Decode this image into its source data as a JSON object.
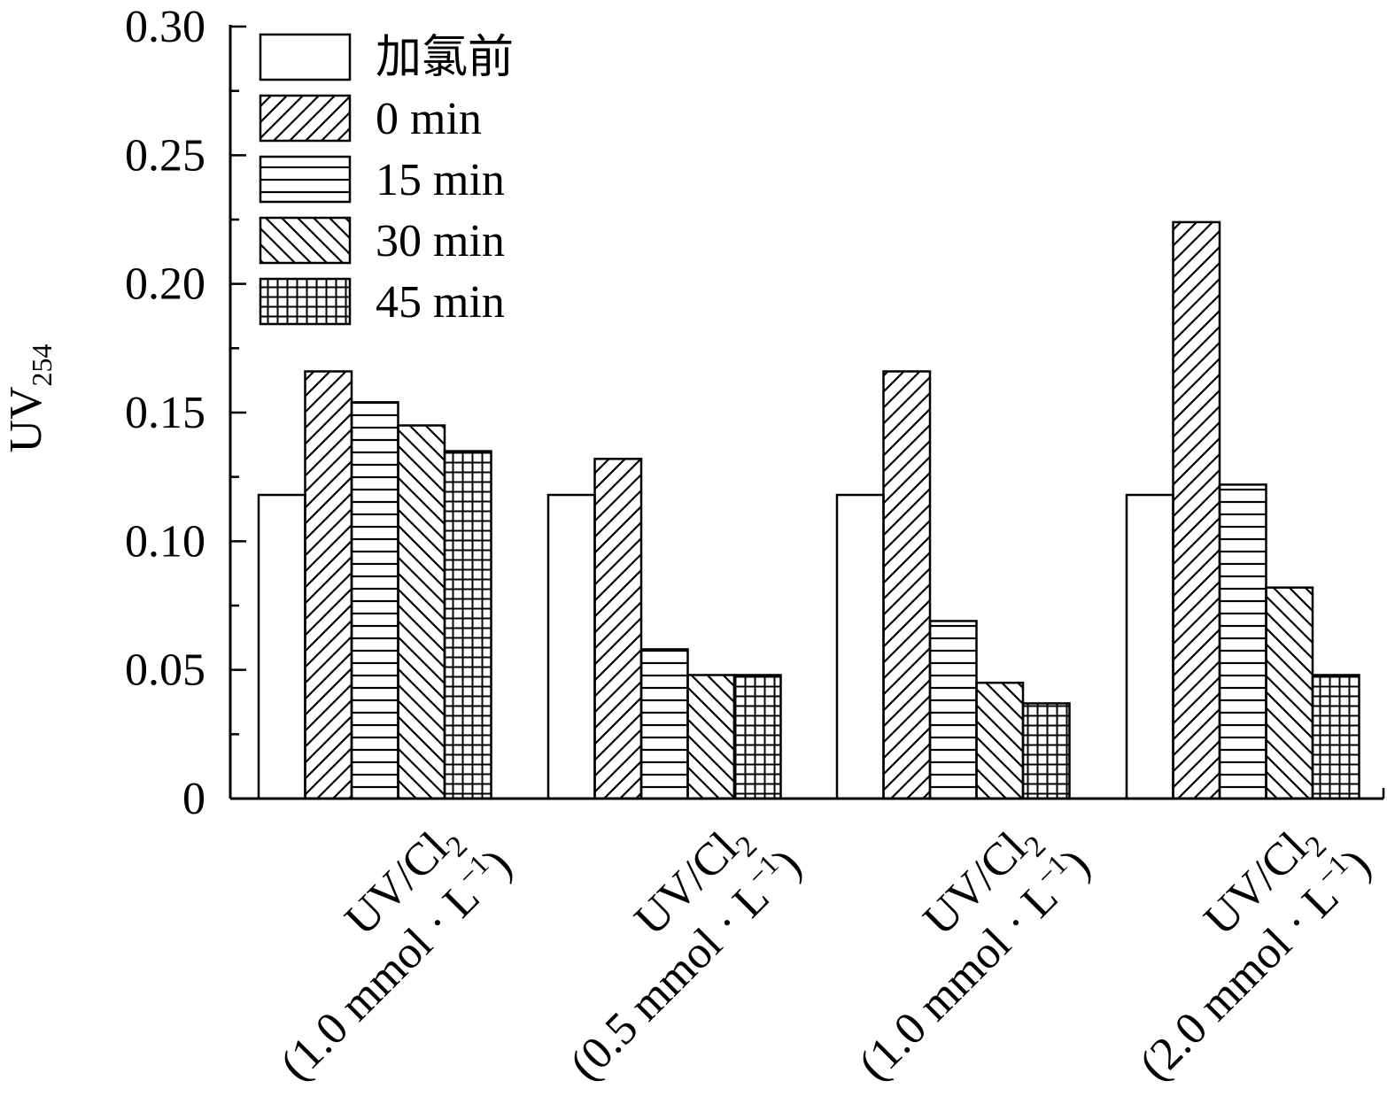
{
  "chart_data": {
    "type": "bar",
    "title": "",
    "ylabel": "UV",
    "ylabel_sub": "254",
    "xlabel": "",
    "ylim": [
      0,
      0.3
    ],
    "yticks": [
      "0",
      "0.05",
      "0.10",
      "0.15",
      "0.20",
      "0.25",
      "0.30"
    ],
    "yminor_step": 0.025,
    "grid": false,
    "legend_position": "top-left",
    "categories": [
      {
        "line1_main": "UV/Cl",
        "line1_sub": "2",
        "line2": "(1.0 mmol · L",
        "line2_sup": "−1",
        "line2_end": ")"
      },
      {
        "line1_main": "UV/Cl",
        "line1_sub": "2",
        "line2": "(0.5 mmol · L",
        "line2_sup": "−1",
        "line2_end": ")"
      },
      {
        "line1_main": "UV/Cl",
        "line1_sub": "2",
        "line2": "(1.0 mmol · L",
        "line2_sup": "−1",
        "line2_end": ")"
      },
      {
        "line1_main": "UV/Cl",
        "line1_sub": "2",
        "line2": "(2.0 mmol · L",
        "line2_sup": "−1",
        "line2_end": ")"
      }
    ],
    "series": [
      {
        "name": "加氯前",
        "pattern": "none",
        "values": [
          0.118,
          0.118,
          0.118,
          0.118
        ]
      },
      {
        "name": "0 min",
        "pattern": "diag-up",
        "values": [
          0.166,
          0.132,
          0.166,
          0.224
        ]
      },
      {
        "name": "15 min",
        "pattern": "horizontal",
        "values": [
          0.154,
          0.058,
          0.069,
          0.122
        ]
      },
      {
        "name": "30 min",
        "pattern": "diag-down",
        "values": [
          0.145,
          0.048,
          0.045,
          0.082
        ]
      },
      {
        "name": "45 min",
        "pattern": "grid",
        "values": [
          0.135,
          0.048,
          0.037,
          0.048
        ]
      }
    ]
  }
}
